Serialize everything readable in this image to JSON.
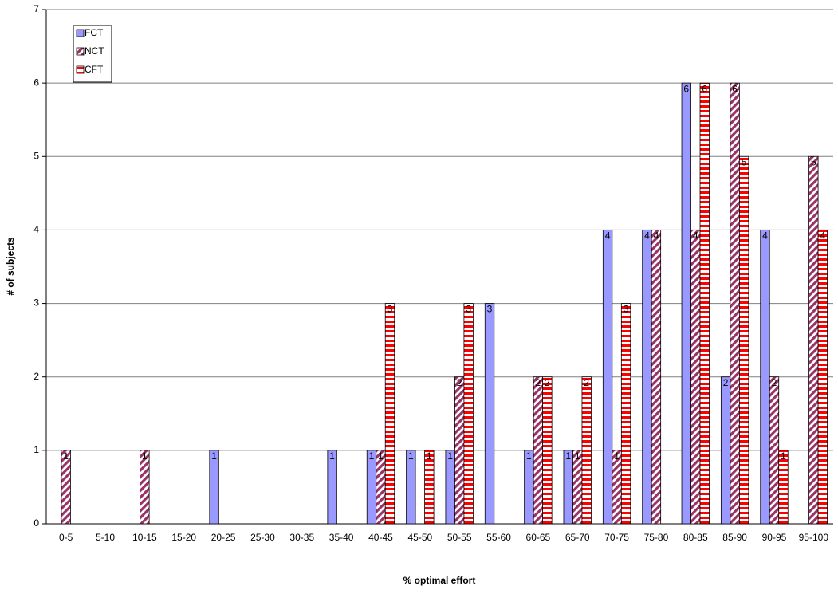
{
  "chart_data": {
    "type": "bar",
    "x_label": "% optimal effort",
    "y_label": "# of subjects",
    "categories": [
      "0-5",
      "5-10",
      "10-15",
      "15-20",
      "20-25",
      "25-30",
      "30-35",
      "35-40",
      "40-45",
      "45-50",
      "50-55",
      "55-60",
      "60-65",
      "65-70",
      "70-75",
      "75-80",
      "80-85",
      "85-90",
      "90-95",
      "95-100"
    ],
    "series": [
      {
        "name": "FCT",
        "color": "#9999ff",
        "pattern": "solid",
        "values": [
          0,
          0,
          0,
          0,
          1,
          0,
          0,
          1,
          1,
          1,
          1,
          3,
          1,
          1,
          4,
          4,
          6,
          2,
          4,
          0
        ]
      },
      {
        "name": "NCT",
        "color": "#993366",
        "pattern": "diagonal",
        "values": [
          1,
          0,
          1,
          0,
          0,
          0,
          0,
          0,
          1,
          0,
          2,
          0,
          2,
          1,
          1,
          4,
          4,
          6,
          2,
          5
        ]
      },
      {
        "name": "CFT",
        "color": "#ff0000",
        "pattern": "horizontal",
        "values": [
          0,
          0,
          0,
          0,
          0,
          0,
          0,
          0,
          3,
          1,
          3,
          0,
          2,
          2,
          3,
          0,
          6,
          5,
          1,
          4
        ]
      }
    ],
    "ylim": [
      0,
      7
    ],
    "yticks": [
      0,
      1,
      2,
      3,
      4,
      5,
      6,
      7
    ],
    "grid": true,
    "legend": "top-left"
  }
}
